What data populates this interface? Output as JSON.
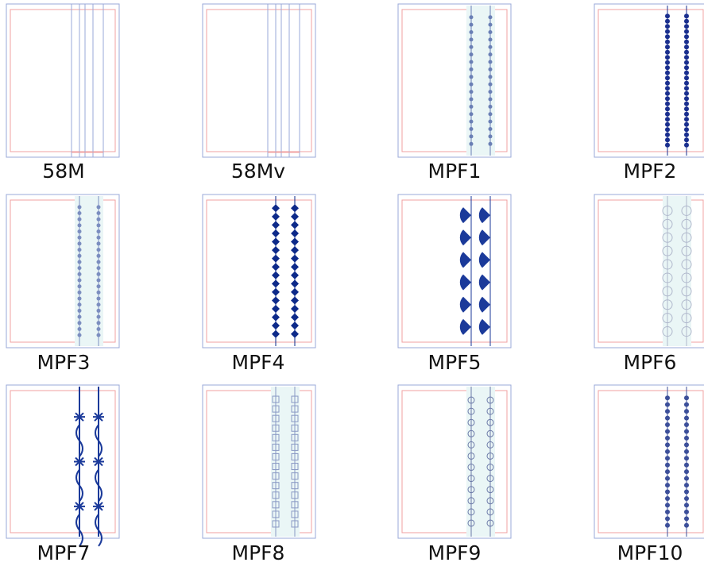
{
  "items": [
    {
      "label": "58M"
    },
    {
      "label": "58Mv"
    },
    {
      "label": "MPF1"
    },
    {
      "label": "MPF2"
    },
    {
      "label": "MPF3"
    },
    {
      "label": "MPF4"
    },
    {
      "label": "MPF5"
    },
    {
      "label": "MPF6"
    },
    {
      "label": "MPF7"
    },
    {
      "label": "MPF8"
    },
    {
      "label": "MPF9"
    },
    {
      "label": "MPF10"
    }
  ]
}
